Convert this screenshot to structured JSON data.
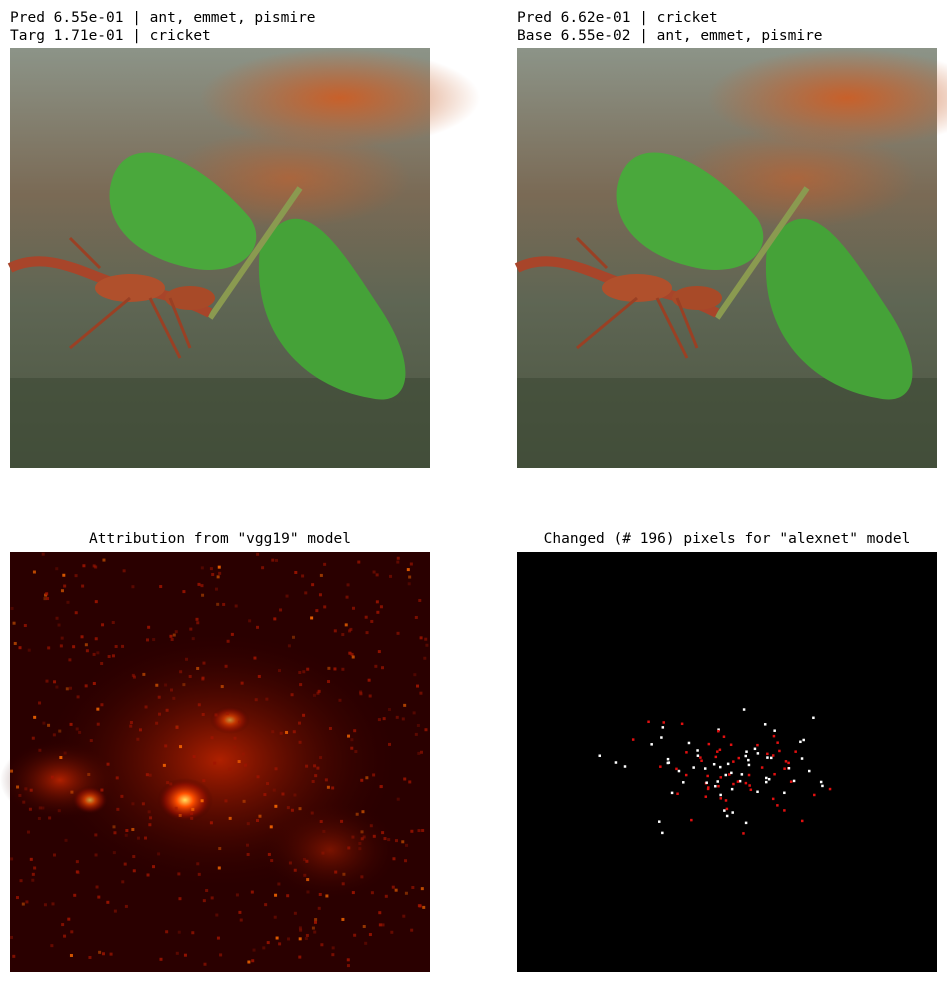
{
  "panels": [
    {
      "title_lines": [
        "Pred 6.55e-01 | ant, emmet, pismire",
        "Targ 1.71e-01 | cricket"
      ]
    },
    {
      "title_lines": [
        "Pred 6.62e-01 | cricket",
        "Base 6.55e-02 | ant, emmet, pismire"
      ]
    },
    {
      "title_lines": [
        "Attribution from \"vgg19\" model"
      ]
    },
    {
      "title_lines": [
        "Changed (# 196) pixels for \"alexnet\" model"
      ]
    }
  ]
}
